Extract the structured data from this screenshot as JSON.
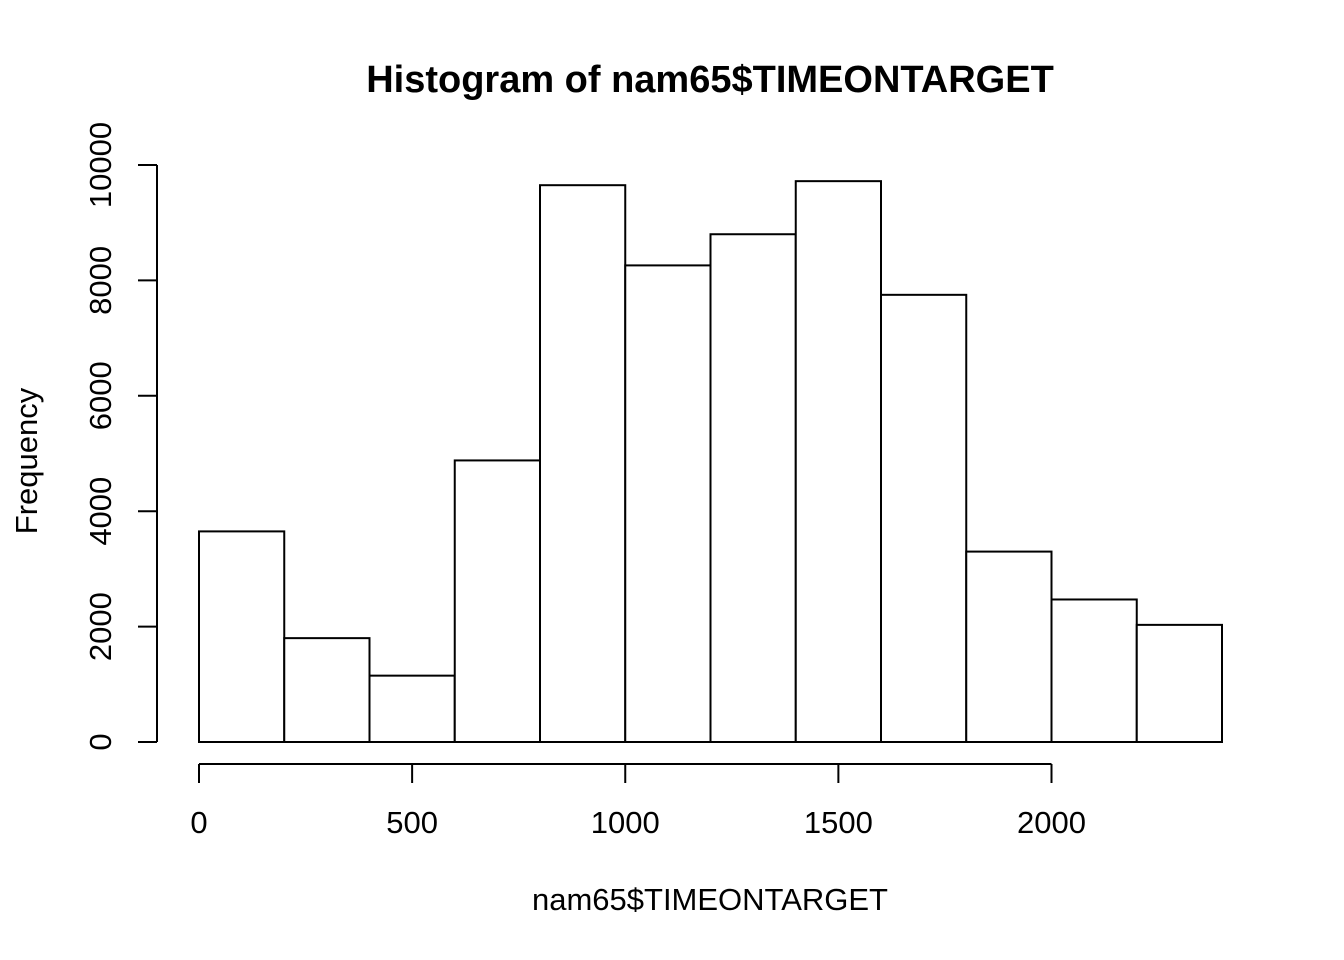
{
  "chart_data": {
    "type": "bar",
    "title": "Histogram of nam65$TIMEONTARGET",
    "xlabel": "nam65$TIMEONTARGET",
    "ylabel": "Frequency",
    "bins": [
      {
        "start": 0,
        "end": 200,
        "count": 3650
      },
      {
        "start": 200,
        "end": 400,
        "count": 1800
      },
      {
        "start": 400,
        "end": 600,
        "count": 1150
      },
      {
        "start": 600,
        "end": 800,
        "count": 4880
      },
      {
        "start": 800,
        "end": 1000,
        "count": 9650
      },
      {
        "start": 1000,
        "end": 1200,
        "count": 8260
      },
      {
        "start": 1200,
        "end": 1400,
        "count": 8800
      },
      {
        "start": 1400,
        "end": 1600,
        "count": 9720
      },
      {
        "start": 1600,
        "end": 1800,
        "count": 7750
      },
      {
        "start": 1800,
        "end": 2000,
        "count": 3300
      },
      {
        "start": 2000,
        "end": 2200,
        "count": 2470
      },
      {
        "start": 2200,
        "end": 2400,
        "count": 2030
      }
    ],
    "xticks": [
      0,
      500,
      1000,
      1500,
      2000
    ],
    "yticks": [
      0,
      2000,
      4000,
      6000,
      8000,
      10000
    ],
    "xlim": [
      0,
      2400
    ],
    "ylim": [
      0,
      10000
    ],
    "grid": false,
    "colors": {
      "bar_fill": "#ffffff",
      "bar_stroke": "#000000",
      "axis": "#000000"
    }
  }
}
